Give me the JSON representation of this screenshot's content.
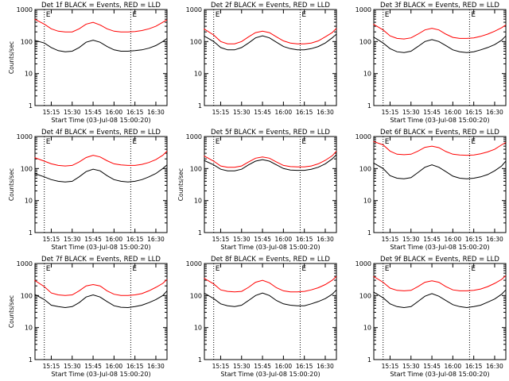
{
  "chart_data": [
    {
      "type": "line",
      "title": "Det 1f BLACK = Events, RED = LLD",
      "xlabel": "Start Time (03-Jul-08 15:00:20)",
      "ylabel": "Counts/sec",
      "x_ticks": [
        "15:15",
        "15:30",
        "15:45",
        "16:00",
        "16:15",
        "16:30"
      ],
      "y_ticks": [
        "1",
        "10",
        "100",
        "1000"
      ],
      "y_scale": "log",
      "ylim": [
        1,
        1000
      ],
      "markers": [
        "E",
        "E"
      ],
      "x": [
        "15:03",
        "15:10",
        "15:15",
        "15:20",
        "15:25",
        "15:30",
        "15:35",
        "15:40",
        "15:45",
        "15:50",
        "15:55",
        "16:00",
        "16:05",
        "16:10",
        "16:15",
        "16:20",
        "16:25",
        "16:30",
        "16:35",
        "16:38"
      ],
      "series": [
        {
          "name": "Events",
          "color": "#000000",
          "values": [
            110,
            90,
            65,
            52,
            48,
            50,
            65,
            95,
            110,
            95,
            70,
            55,
            50,
            50,
            52,
            55,
            62,
            75,
            100,
            125
          ]
        },
        {
          "name": "LLD",
          "color": "#ff0000",
          "values": [
            500,
            350,
            250,
            210,
            200,
            200,
            250,
            350,
            400,
            330,
            250,
            210,
            200,
            200,
            205,
            220,
            250,
            300,
            400,
            480
          ]
        }
      ]
    },
    {
      "type": "line",
      "title": "Det 2f BLACK = Events, RED = LLD",
      "xlabel": "",
      "ylabel": "",
      "x_ticks": [
        "15:15",
        "15:30",
        "15:45",
        "16:00",
        "16:15",
        "16:30"
      ],
      "y_ticks": [
        "1",
        "10",
        "100",
        "1000"
      ],
      "y_scale": "log",
      "ylim": [
        1,
        1000
      ],
      "markers": [
        "E",
        "E"
      ],
      "x": [
        "15:03",
        "15:10",
        "15:15",
        "15:20",
        "15:25",
        "15:30",
        "15:35",
        "15:40",
        "15:45",
        "15:50",
        "15:55",
        "16:00",
        "16:05",
        "16:10",
        "16:15",
        "16:20",
        "16:25",
        "16:30",
        "16:35",
        "16:38"
      ],
      "series": [
        {
          "name": "Events",
          "color": "#000000",
          "values": [
            150,
            100,
            65,
            55,
            55,
            65,
            90,
            130,
            150,
            130,
            95,
            70,
            60,
            55,
            55,
            60,
            70,
            90,
            130,
            170
          ]
        },
        {
          "name": "LLD",
          "color": "#ff0000",
          "values": [
            250,
            160,
            100,
            85,
            85,
            100,
            140,
            190,
            210,
            190,
            140,
            105,
            90,
            85,
            85,
            90,
            105,
            140,
            190,
            260
          ]
        }
      ]
    },
    {
      "type": "line",
      "title": "Det 3f BLACK = Events, RED = LLD",
      "xlabel": "Start Time (03-Jul-08 15:00:20)",
      "ylabel": "",
      "x_ticks": [
        "15:15",
        "15:30",
        "15:45",
        "16:00",
        "16:15",
        "16:30"
      ],
      "y_ticks": [
        "1",
        "10",
        "100",
        "1000"
      ],
      "y_scale": "log",
      "ylim": [
        1,
        1000
      ],
      "markers": [
        "E",
        "E"
      ],
      "x": [
        "15:03",
        "15:10",
        "15:15",
        "15:20",
        "15:25",
        "15:30",
        "15:35",
        "15:40",
        "15:45",
        "15:50",
        "15:55",
        "16:00",
        "16:05",
        "16:10",
        "16:15",
        "16:20",
        "16:25",
        "16:30",
        "16:35",
        "16:38"
      ],
      "series": [
        {
          "name": "Events",
          "color": "#000000",
          "values": [
            140,
            90,
            60,
            48,
            45,
            50,
            70,
            100,
            115,
            100,
            75,
            55,
            48,
            45,
            48,
            55,
            65,
            80,
            110,
            150
          ]
        },
        {
          "name": "LLD",
          "color": "#ff0000",
          "values": [
            350,
            230,
            150,
            125,
            120,
            130,
            170,
            230,
            260,
            230,
            170,
            135,
            125,
            125,
            130,
            145,
            170,
            210,
            270,
            330
          ]
        }
      ]
    },
    {
      "type": "line",
      "title": "Det 4f BLACK = Events, RED = LLD",
      "xlabel": "Start Time (03-Jul-08 15:00:20)",
      "ylabel": "Counts/sec",
      "x_ticks": [
        "15:15",
        "15:30",
        "15:45",
        "16:00",
        "16:15",
        "16:30"
      ],
      "y_ticks": [
        "1",
        "10",
        "100",
        "1000"
      ],
      "y_scale": "log",
      "ylim": [
        1,
        1000
      ],
      "markers": [
        "E",
        "E"
      ],
      "x": [
        "15:03",
        "15:10",
        "15:15",
        "15:20",
        "15:25",
        "15:30",
        "15:35",
        "15:40",
        "15:45",
        "15:50",
        "15:55",
        "16:00",
        "16:05",
        "16:10",
        "16:15",
        "16:20",
        "16:25",
        "16:30",
        "16:35",
        "16:38"
      ],
      "series": [
        {
          "name": "Events",
          "color": "#000000",
          "values": [
            70,
            55,
            45,
            40,
            38,
            40,
            55,
            80,
            95,
            85,
            60,
            45,
            40,
            38,
            40,
            45,
            55,
            70,
            100,
            130
          ]
        },
        {
          "name": "LLD",
          "color": "#ff0000",
          "values": [
            220,
            170,
            140,
            125,
            120,
            125,
            160,
            220,
            260,
            230,
            175,
            140,
            130,
            125,
            125,
            135,
            155,
            190,
            260,
            350
          ]
        }
      ]
    },
    {
      "type": "line",
      "title": "Det 5f BLACK = Events, RED = LLD",
      "xlabel": "Start Time (03-Jul-08 15:00:20)",
      "ylabel": "Counts/sec",
      "x_ticks": [
        "15:15",
        "15:30",
        "15:45",
        "16:00",
        "16:15",
        "16:30"
      ],
      "y_ticks": [
        "1",
        "10",
        "100",
        "1000"
      ],
      "y_scale": "log",
      "ylim": [
        1,
        1000
      ],
      "markers": [
        "E",
        "E"
      ],
      "x": [
        "15:03",
        "15:10",
        "15:15",
        "15:20",
        "15:25",
        "15:30",
        "15:35",
        "15:40",
        "15:45",
        "15:50",
        "15:55",
        "16:00",
        "16:05",
        "16:10",
        "16:15",
        "16:20",
        "16:25",
        "16:30",
        "16:35",
        "16:38"
      ],
      "series": [
        {
          "name": "Events",
          "color": "#000000",
          "values": [
            180,
            130,
            95,
            85,
            85,
            95,
            130,
            170,
            190,
            170,
            130,
            100,
            90,
            88,
            88,
            95,
            110,
            140,
            200,
            270
          ]
        },
        {
          "name": "LLD",
          "color": "#ff0000",
          "values": [
            250,
            170,
            120,
            110,
            110,
            120,
            160,
            210,
            230,
            210,
            160,
            125,
            115,
            112,
            112,
            120,
            140,
            180,
            250,
            350
          ]
        }
      ]
    },
    {
      "type": "line",
      "title": "Det 6f BLACK = Events, RED = LLD",
      "xlabel": "Start Time (03-Jul-08 15:00:20)",
      "ylabel": "",
      "x_ticks": [
        "15:15",
        "15:30",
        "15:45",
        "16:00",
        "16:15",
        "16:30"
      ],
      "y_ticks": [
        "1",
        "10",
        "100",
        "1000"
      ],
      "y_scale": "log",
      "ylim": [
        1,
        1000
      ],
      "markers": [
        "E",
        "E"
      ],
      "x": [
        "15:03",
        "15:10",
        "15:15",
        "15:20",
        "15:25",
        "15:30",
        "15:35",
        "15:40",
        "15:45",
        "15:50",
        "15:55",
        "16:00",
        "16:05",
        "16:10",
        "16:15",
        "16:20",
        "16:25",
        "16:30",
        "16:35",
        "16:38"
      ],
      "series": [
        {
          "name": "Events",
          "color": "#000000",
          "values": [
            150,
            100,
            60,
            50,
            48,
            52,
            75,
            110,
            130,
            110,
            80,
            58,
            50,
            48,
            50,
            55,
            65,
            85,
            120,
            170
          ]
        },
        {
          "name": "LLD",
          "color": "#ff0000",
          "values": [
            700,
            550,
            350,
            280,
            270,
            280,
            350,
            460,
            500,
            450,
            340,
            280,
            265,
            260,
            265,
            290,
            330,
            400,
            550,
            650
          ]
        }
      ]
    },
    {
      "type": "line",
      "title": "Det 7f BLACK = Events, RED = LLD",
      "xlabel": "Start Time (03-Jul-08 15:00:20)",
      "ylabel": "Counts/sec",
      "x_ticks": [
        "15:15",
        "15:30",
        "15:45",
        "16:00",
        "16:15",
        "16:30"
      ],
      "y_ticks": [
        "1",
        "10",
        "100",
        "1000"
      ],
      "y_scale": "log",
      "ylim": [
        1,
        1000
      ],
      "markers": [
        "E",
        "E"
      ],
      "x": [
        "15:03",
        "15:10",
        "15:15",
        "15:20",
        "15:25",
        "15:30",
        "15:35",
        "15:40",
        "15:45",
        "15:50",
        "15:55",
        "16:00",
        "16:05",
        "16:10",
        "16:15",
        "16:20",
        "16:25",
        "16:30",
        "16:35",
        "16:38"
      ],
      "series": [
        {
          "name": "Events",
          "color": "#000000",
          "values": [
            110,
            75,
            50,
            45,
            42,
            45,
            60,
            90,
            105,
            90,
            65,
            48,
            43,
            42,
            45,
            50,
            60,
            75,
            100,
            140
          ]
        },
        {
          "name": "LLD",
          "color": "#ff0000",
          "values": [
            300,
            190,
            120,
            105,
            100,
            105,
            140,
            200,
            220,
            200,
            140,
            110,
            100,
            100,
            105,
            115,
            140,
            180,
            240,
            320
          ]
        }
      ]
    },
    {
      "type": "line",
      "title": "Det 8f BLACK = Events, RED = LLD",
      "xlabel": "Start Time (03-Jul-08 15:00:20)",
      "ylabel": "",
      "x_ticks": [
        "15:15",
        "15:30",
        "15:45",
        "16:00",
        "16:15",
        "16:30"
      ],
      "y_ticks": [
        "1",
        "10",
        "100",
        "1000"
      ],
      "y_scale": "log",
      "ylim": [
        1,
        1000
      ],
      "markers": [
        "E",
        "E"
      ],
      "x": [
        "15:03",
        "15:10",
        "15:15",
        "15:20",
        "15:25",
        "15:30",
        "15:35",
        "15:40",
        "15:45",
        "15:50",
        "15:55",
        "16:00",
        "16:05",
        "16:10",
        "16:15",
        "16:20",
        "16:25",
        "16:30",
        "16:35",
        "16:38"
      ],
      "series": [
        {
          "name": "Events",
          "color": "#000000",
          "values": [
            120,
            80,
            55,
            48,
            45,
            50,
            70,
            100,
            120,
            100,
            70,
            55,
            50,
            48,
            48,
            55,
            65,
            80,
            110,
            150
          ]
        },
        {
          "name": "LLD",
          "color": "#ff0000",
          "values": [
            350,
            230,
            150,
            135,
            130,
            135,
            180,
            260,
            300,
            250,
            175,
            140,
            130,
            130,
            135,
            150,
            175,
            220,
            300,
            400
          ]
        }
      ]
    },
    {
      "type": "line",
      "title": "Det 9f BLACK = Events, RED = LLD",
      "xlabel": "Start Time (03-Jul-08 15:00:20)",
      "ylabel": "",
      "x_ticks": [
        "15:15",
        "15:30",
        "15:45",
        "16:00",
        "16:15",
        "16:30"
      ],
      "y_ticks": [
        "1",
        "10",
        "100",
        "1000"
      ],
      "y_scale": "log",
      "ylim": [
        1,
        1000
      ],
      "markers": [
        "E",
        "E"
      ],
      "x": [
        "15:03",
        "15:10",
        "15:15",
        "15:20",
        "15:25",
        "15:30",
        "15:35",
        "15:40",
        "15:45",
        "15:50",
        "15:55",
        "16:00",
        "16:05",
        "16:10",
        "16:15",
        "16:20",
        "16:25",
        "16:30",
        "16:35",
        "16:38"
      ],
      "series": [
        {
          "name": "Events",
          "color": "#000000",
          "values": [
            130,
            85,
            55,
            45,
            42,
            45,
            65,
            95,
            115,
            95,
            70,
            52,
            45,
            42,
            45,
            50,
            62,
            78,
            110,
            150
          ]
        },
        {
          "name": "LLD",
          "color": "#ff0000",
          "values": [
            400,
            260,
            170,
            145,
            140,
            145,
            190,
            260,
            290,
            260,
            190,
            150,
            140,
            140,
            145,
            160,
            190,
            240,
            320,
            420
          ]
        }
      ]
    }
  ]
}
